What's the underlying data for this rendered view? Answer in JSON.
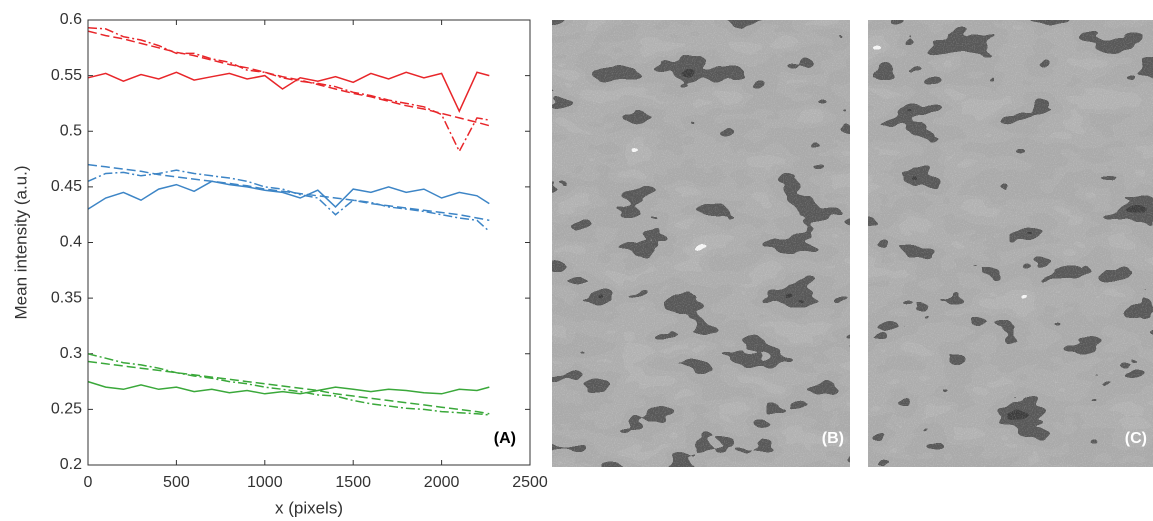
{
  "chart_data": [
    {
      "type": "line",
      "xlabel": "x (pixels)",
      "ylabel": "Mean intensity (a.u.)",
      "panel_label": "(A)",
      "xlim": [
        0,
        2500
      ],
      "ylim": [
        0.2,
        0.6
      ],
      "xticks": [
        0,
        500,
        1000,
        1500,
        2000,
        2500
      ],
      "yticks": [
        0.2,
        0.25,
        0.3,
        0.35,
        0.4,
        0.45,
        0.5,
        0.55,
        0.6
      ],
      "x": [
        0,
        100,
        200,
        300,
        400,
        500,
        600,
        700,
        800,
        900,
        1000,
        1100,
        1200,
        1300,
        1400,
        1500,
        1600,
        1700,
        1800,
        1900,
        2000,
        2100,
        2200,
        2270
      ],
      "series": [
        {
          "color": "#e8262a",
          "style": "solid",
          "values": [
            0.548,
            0.552,
            0.545,
            0.551,
            0.547,
            0.553,
            0.546,
            0.549,
            0.552,
            0.547,
            0.55,
            0.538,
            0.548,
            0.545,
            0.549,
            0.544,
            0.552,
            0.547,
            0.553,
            0.548,
            0.552,
            0.518,
            0.553,
            0.55
          ]
        },
        {
          "color": "#e8262a",
          "style": "dashed",
          "values": [
            0.59,
            0.586,
            0.583,
            0.579,
            0.575,
            0.571,
            0.568,
            0.564,
            0.56,
            0.557,
            0.553,
            0.549,
            0.546,
            0.542,
            0.538,
            0.534,
            0.531,
            0.527,
            0.523,
            0.52,
            0.516,
            0.512,
            0.508,
            0.505
          ]
        },
        {
          "color": "#e8262a",
          "style": "dashdot",
          "values": [
            0.593,
            0.592,
            0.585,
            0.582,
            0.577,
            0.57,
            0.57,
            0.565,
            0.562,
            0.555,
            0.553,
            0.548,
            0.545,
            0.543,
            0.54,
            0.535,
            0.532,
            0.528,
            0.525,
            0.522,
            0.515,
            0.482,
            0.512,
            0.51
          ]
        },
        {
          "color": "#3d85c6",
          "style": "solid",
          "values": [
            0.43,
            0.44,
            0.445,
            0.438,
            0.448,
            0.452,
            0.446,
            0.455,
            0.452,
            0.45,
            0.447,
            0.445,
            0.44,
            0.447,
            0.432,
            0.448,
            0.445,
            0.45,
            0.445,
            0.448,
            0.44,
            0.445,
            0.442,
            0.435
          ]
        },
        {
          "color": "#3d85c6",
          "style": "dashed",
          "values": [
            0.47,
            0.468,
            0.466,
            0.464,
            0.461,
            0.459,
            0.457,
            0.455,
            0.453,
            0.451,
            0.448,
            0.446,
            0.444,
            0.442,
            0.44,
            0.438,
            0.435,
            0.433,
            0.431,
            0.429,
            0.427,
            0.425,
            0.422,
            0.42
          ]
        },
        {
          "color": "#3d85c6",
          "style": "dashdot",
          "values": [
            0.455,
            0.462,
            0.463,
            0.46,
            0.462,
            0.465,
            0.462,
            0.46,
            0.458,
            0.455,
            0.45,
            0.448,
            0.443,
            0.44,
            0.425,
            0.438,
            0.436,
            0.432,
            0.43,
            0.428,
            0.425,
            0.422,
            0.42,
            0.41
          ]
        },
        {
          "color": "#3aa83a",
          "style": "solid",
          "values": [
            0.275,
            0.27,
            0.268,
            0.272,
            0.268,
            0.27,
            0.266,
            0.268,
            0.265,
            0.267,
            0.264,
            0.266,
            0.264,
            0.267,
            0.27,
            0.268,
            0.266,
            0.268,
            0.267,
            0.265,
            0.264,
            0.268,
            0.267,
            0.27
          ]
        },
        {
          "color": "#3aa83a",
          "style": "dashed",
          "values": [
            0.293,
            0.291,
            0.289,
            0.287,
            0.285,
            0.283,
            0.281,
            0.279,
            0.277,
            0.275,
            0.273,
            0.271,
            0.269,
            0.267,
            0.264,
            0.262,
            0.26,
            0.258,
            0.256,
            0.254,
            0.252,
            0.25,
            0.248,
            0.246
          ]
        },
        {
          "color": "#3aa83a",
          "style": "dashdot",
          "values": [
            0.3,
            0.296,
            0.292,
            0.29,
            0.287,
            0.283,
            0.28,
            0.278,
            0.275,
            0.273,
            0.27,
            0.268,
            0.266,
            0.263,
            0.262,
            0.258,
            0.255,
            0.253,
            0.251,
            0.25,
            0.248,
            0.247,
            0.246,
            0.245
          ]
        }
      ]
    },
    {
      "type": "image",
      "panel_label": "(B)"
    },
    {
      "type": "image",
      "panel_label": "(C)"
    }
  ]
}
